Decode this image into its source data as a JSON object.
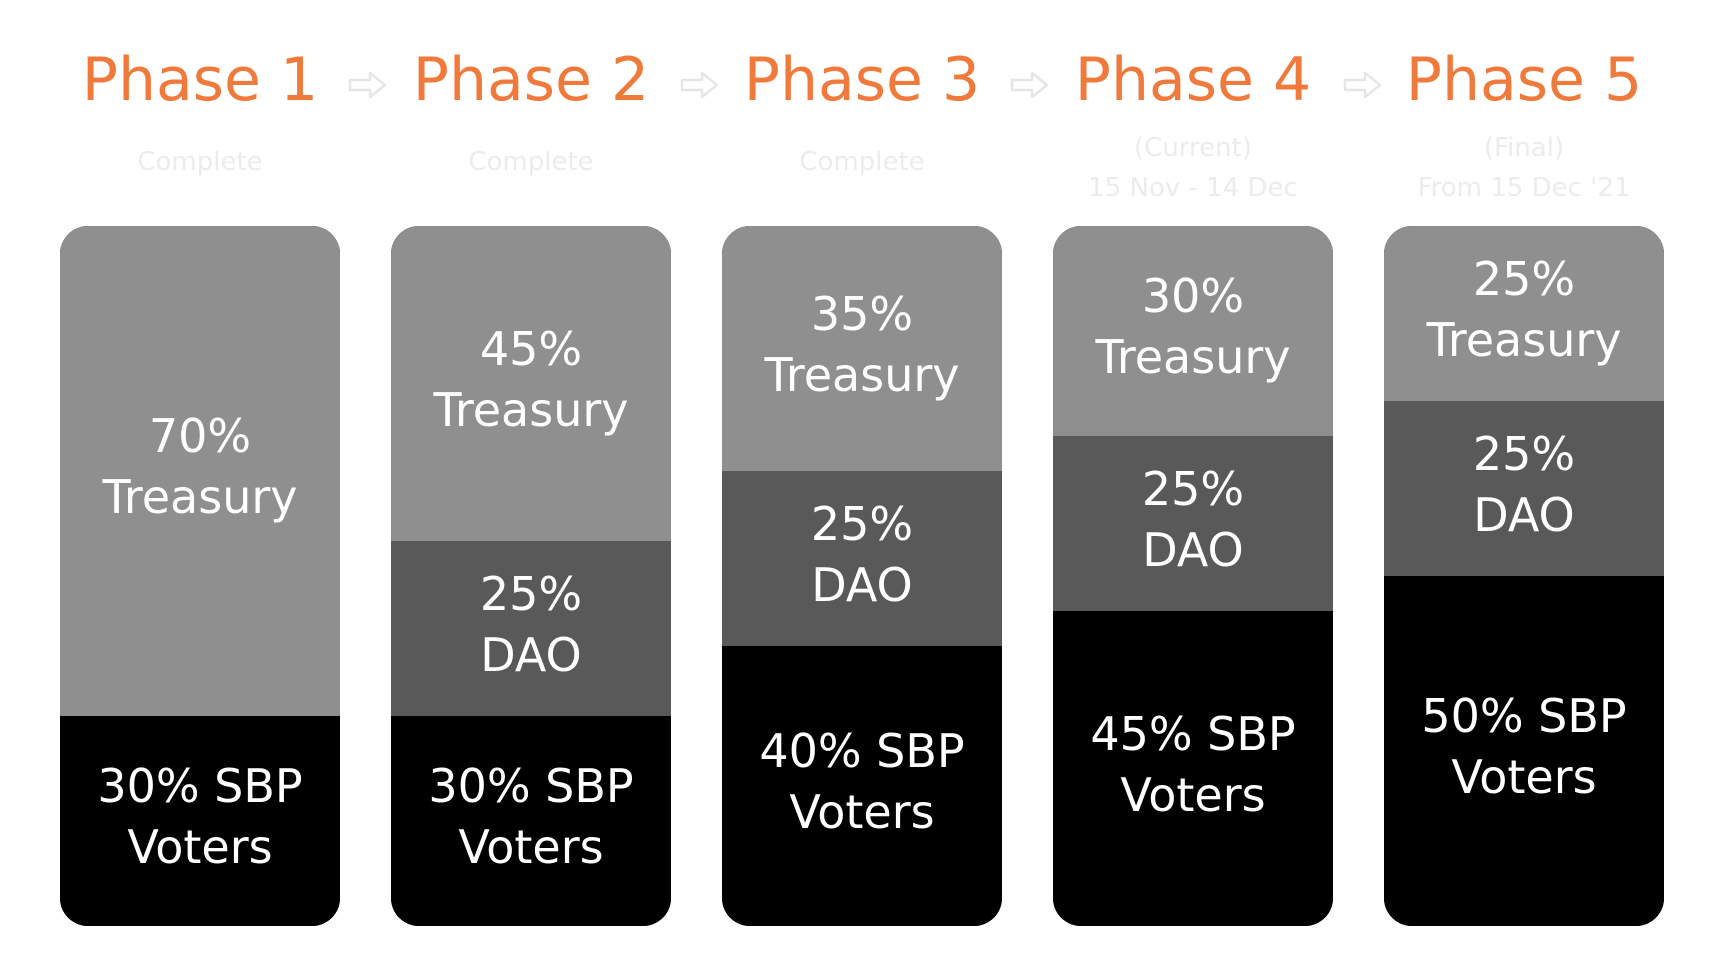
{
  "colors": {
    "title": "#f07a3c",
    "subtitle": "#ececec",
    "treasury": "#8f8f8f",
    "dao": "#595959",
    "voters": "#000000",
    "label": "#ffffff",
    "arrow": "#e6e6e6"
  },
  "arrow_icon": "arrow-right-icon",
  "chart_data": {
    "type": "bar",
    "stacked": true,
    "orientation": "vertical",
    "categories": [
      "Phase 1",
      "Phase 2",
      "Phase 3",
      "Phase 4",
      "Phase 5"
    ],
    "subtitles": [
      [
        "Complete"
      ],
      [
        "Complete"
      ],
      [
        "Complete"
      ],
      [
        "(Current)",
        "15 Nov - 14 Dec"
      ],
      [
        "(Final)",
        "From 15 Dec '21"
      ]
    ],
    "series": [
      {
        "key": "voters",
        "values": [
          30,
          30,
          40,
          45,
          50
        ],
        "labels": [
          [
            "30% SBP",
            "Voters"
          ],
          [
            "30% SBP",
            "Voters"
          ],
          [
            "40% SBP",
            "Voters"
          ],
          [
            "45% SBP",
            "Voters"
          ],
          [
            "50% SBP",
            "Voters"
          ]
        ]
      },
      {
        "key": "dao",
        "values": [
          0,
          25,
          25,
          25,
          25
        ],
        "labels": [
          [],
          [
            "25%",
            "DAO"
          ],
          [
            "25%",
            "DAO"
          ],
          [
            "25%",
            "DAO"
          ],
          [
            "25%",
            "DAO"
          ]
        ]
      },
      {
        "key": "treasury",
        "values": [
          70,
          45,
          35,
          30,
          25
        ],
        "labels": [
          [
            "70%",
            "Treasury"
          ],
          [
            "45%",
            "Treasury"
          ],
          [
            "35%",
            "Treasury"
          ],
          [
            "30%",
            "Treasury"
          ],
          [
            "25%",
            "Treasury"
          ]
        ]
      }
    ],
    "ylim": [
      0,
      100
    ],
    "legend": "none",
    "grid": false
  }
}
